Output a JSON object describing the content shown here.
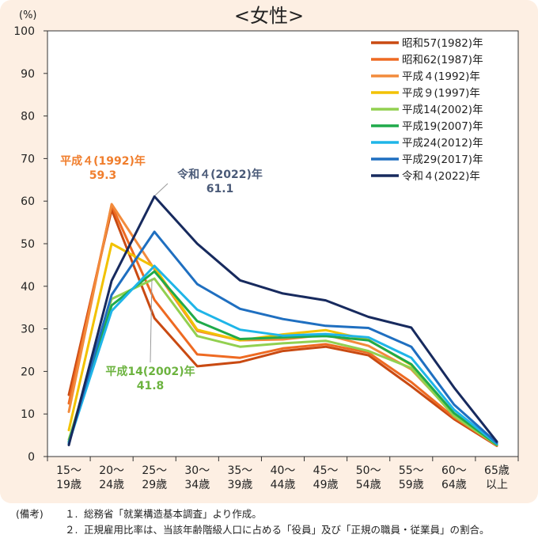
{
  "chart_data": {
    "type": "line",
    "title": "<女性>",
    "ylabel": "(%)",
    "xlabel": "",
    "ylim": [
      0,
      100
    ],
    "yticks": [
      0,
      10,
      20,
      30,
      40,
      50,
      60,
      70,
      80,
      90,
      100
    ],
    "grid": false,
    "legend_position": "top-right",
    "categories": [
      [
        "15〜",
        "19歳"
      ],
      [
        "20〜",
        "24歳"
      ],
      [
        "25〜",
        "29歳"
      ],
      [
        "30〜",
        "34歳"
      ],
      [
        "35〜",
        "39歳"
      ],
      [
        "40〜",
        "44歳"
      ],
      [
        "45〜",
        "49歳"
      ],
      [
        "50〜",
        "54歳"
      ],
      [
        "55〜",
        "59歳"
      ],
      [
        "60〜",
        "64歳"
      ],
      [
        "65歳",
        "以上"
      ]
    ],
    "series": [
      {
        "name": "昭和57(1982)年",
        "color": "#c94a12",
        "values": [
          14.5,
          58.0,
          32.5,
          21.2,
          22.2,
          24.8,
          25.8,
          23.8,
          16.5,
          8.8,
          2.5
        ]
      },
      {
        "name": "昭和62(1987)年",
        "color": "#ee6a22",
        "values": [
          12.5,
          59.0,
          36.8,
          24.0,
          23.2,
          25.4,
          26.4,
          24.4,
          17.5,
          9.2,
          2.6
        ]
      },
      {
        "name": "平成４(1992)年",
        "color": "#f28b3c",
        "values": [
          10.5,
          59.3,
          44.0,
          29.5,
          27.3,
          27.5,
          28.6,
          26.0,
          20.5,
          9.8,
          2.7
        ]
      },
      {
        "name": "平成９(1997)年",
        "color": "#f2c200",
        "values": [
          6.2,
          50.0,
          44.5,
          29.8,
          27.3,
          28.7,
          29.7,
          27.4,
          21.5,
          10.0,
          2.8
        ]
      },
      {
        "name": "平成14(2002)年",
        "color": "#92d050",
        "values": [
          4.0,
          37.0,
          41.8,
          28.3,
          25.8,
          26.6,
          27.2,
          24.8,
          20.8,
          9.5,
          2.7
        ]
      },
      {
        "name": "平成19(2007)年",
        "color": "#1faa4a",
        "values": [
          3.5,
          35.5,
          43.5,
          31.8,
          27.6,
          28.0,
          28.3,
          27.3,
          21.7,
          10.2,
          2.8
        ]
      },
      {
        "name": "平成24(2012)年",
        "color": "#1fb5e8",
        "values": [
          3.2,
          34.2,
          44.8,
          34.5,
          29.8,
          28.4,
          28.8,
          28.0,
          23.2,
          11.0,
          3.0
        ]
      },
      {
        "name": "平成29(2017)年",
        "color": "#1f6fc0",
        "values": [
          3.0,
          38.0,
          52.8,
          40.5,
          34.7,
          32.3,
          30.7,
          30.2,
          25.8,
          12.2,
          3.2
        ]
      },
      {
        "name": "令和４(2022)年",
        "color": "#172a5e",
        "values": [
          2.7,
          41.3,
          61.1,
          50.0,
          41.4,
          38.3,
          36.7,
          32.8,
          30.3,
          16.2,
          3.5
        ]
      }
    ],
    "annotations": [
      {
        "lines": [
          "平成４(1992)年",
          "59.3"
        ],
        "color": "#f07e2d",
        "series": "平成４(1992)年",
        "category_index": 1
      },
      {
        "lines": [
          "令和４(2022)年",
          "61.1"
        ],
        "color": "#4a5a78",
        "series": "令和４(2022)年",
        "category_index": 2
      },
      {
        "lines": [
          "平成14(2002)年",
          "41.8"
        ],
        "color": "#6cb33f",
        "series": "平成14(2002)年",
        "category_index": 2
      }
    ]
  },
  "notes": {
    "lead": "(備考)",
    "items": [
      {
        "num": "１.",
        "text": "総務省「就業構造基本調査」より作成。"
      },
      {
        "num": "２.",
        "text": "正規雇用比率は、当該年齢階級人口に占める「役員」及び「正規の職員・従業員」の割合。"
      }
    ]
  }
}
